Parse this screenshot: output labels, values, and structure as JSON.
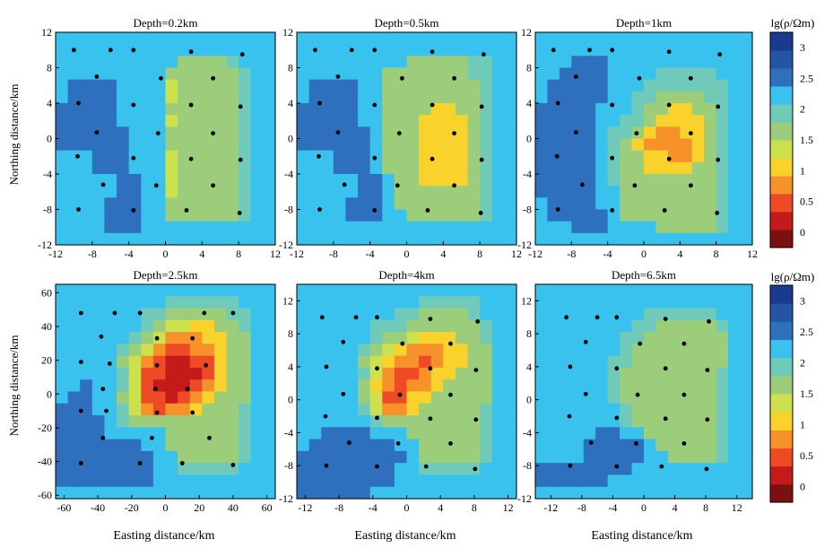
{
  "figure": {
    "x_axis_label": "Easting distance/km",
    "y_axis_label": "Northing distance/km"
  },
  "colorbar": {
    "title": "lg(ρ/Ωm)",
    "ticks": [
      "3",
      "2.5",
      "2",
      "1.5",
      "1",
      "0.5",
      "0"
    ],
    "colors": [
      "#7a1010",
      "#c41a1a",
      "#ee4a25",
      "#f7922a",
      "#f9d22c",
      "#cde04d",
      "#9ccd7a",
      "#6fcab9",
      "#39c2ee",
      "#2e6fbe",
      "#2455a4",
      "#1a3a8e"
    ]
  },
  "chart_data": [
    {
      "type": "heatmap",
      "title": "Depth=0.2km",
      "x_range": [
        -12,
        12
      ],
      "y_range": [
        -12,
        12
      ],
      "x_ticks": [
        "-12",
        "-8",
        "-4",
        "0",
        "4",
        "8",
        "12"
      ],
      "y_ticks": [
        "12",
        "8",
        "4",
        "0",
        "-4",
        "-8",
        "-12"
      ],
      "grid": [
        "888888888888888888",
        "888888888888888888",
        "888888888866667888",
        "888888888666666788",
        "899998888566666788",
        "899998888566666788",
        "999998888666666788",
        "999998888566666788",
        "999999888666666788",
        "999999888666666788",
        "888999888566666788",
        "888999888566666788",
        "888889988566666788",
        "888889988566666788",
        "888899988666666788",
        "888899988666666788",
        "888899988888888888",
        "888888888888888888"
      ],
      "stations": [
        [
          -10,
          10
        ],
        [
          -6,
          10
        ],
        [
          -3.5,
          10
        ],
        [
          2.8,
          9.8
        ],
        [
          8.4,
          9.5
        ],
        [
          -7.5,
          7
        ],
        [
          -0.5,
          6.8
        ],
        [
          5.2,
          6.8
        ],
        [
          -9.5,
          4
        ],
        [
          -3.5,
          3.8
        ],
        [
          2.8,
          3.8
        ],
        [
          8.2,
          3.6
        ],
        [
          -7.5,
          0.7
        ],
        [
          -0.8,
          0.6
        ],
        [
          5.2,
          0.6
        ],
        [
          -9.6,
          -2
        ],
        [
          -3.5,
          -2.2
        ],
        [
          2.8,
          -2.3
        ],
        [
          8.2,
          -2.4
        ],
        [
          -6.8,
          -5.2
        ],
        [
          -1,
          -5.3
        ],
        [
          5.2,
          -5.3
        ],
        [
          -9.5,
          -8
        ],
        [
          -3.5,
          -8.1
        ],
        [
          2.3,
          -8.1
        ],
        [
          8.1,
          -8.4
        ]
      ]
    },
    {
      "type": "heatmap",
      "title": "Depth=0.5km",
      "x_range": [
        -12,
        12
      ],
      "y_range": [
        -12,
        12
      ],
      "x_ticks": [
        "-12",
        "-8",
        "-4",
        "0",
        "4",
        "8",
        "12"
      ],
      "y_ticks": [
        "12",
        "8",
        "4",
        "0",
        "-4",
        "-8",
        "-12"
      ],
      "grid": [
        "888888888888888888",
        "888888888888888888",
        "888888888666667788",
        "888888866666667788",
        "899998866666666788",
        "899998866666666788",
        "999998866664466788",
        "999998866644446788",
        "999999866644446788",
        "999999866644446788",
        "888999866644446788",
        "888999866644446788",
        "888889986644446788",
        "888889986666666788",
        "888899986666666788",
        "888899988666666788",
        "888888888888888888",
        "888888888888888888"
      ],
      "stations": [
        [
          -10,
          10
        ],
        [
          -6,
          10
        ],
        [
          -3.5,
          10
        ],
        [
          2.8,
          9.8
        ],
        [
          8.4,
          9.5
        ],
        [
          -7.5,
          7
        ],
        [
          -0.5,
          6.8
        ],
        [
          5.2,
          6.8
        ],
        [
          -9.5,
          4
        ],
        [
          -3.5,
          3.8
        ],
        [
          2.8,
          3.8
        ],
        [
          8.2,
          3.6
        ],
        [
          -7.5,
          0.7
        ],
        [
          -0.8,
          0.6
        ],
        [
          5.2,
          0.6
        ],
        [
          -9.6,
          -2
        ],
        [
          -3.5,
          -2.2
        ],
        [
          2.8,
          -2.3
        ],
        [
          8.2,
          -2.4
        ],
        [
          -6.8,
          -5.2
        ],
        [
          -1,
          -5.3
        ],
        [
          5.2,
          -5.3
        ],
        [
          -9.5,
          -8
        ],
        [
          -3.5,
          -8.1
        ],
        [
          2.3,
          -8.1
        ],
        [
          8.1,
          -8.4
        ]
      ]
    },
    {
      "type": "heatmap",
      "title": "Depth=1km",
      "x_range": [
        -12,
        12
      ],
      "y_range": [
        -12,
        12
      ],
      "x_ticks": [
        "-12",
        "-8",
        "-4",
        "0",
        "4",
        "8",
        "12"
      ],
      "y_ticks": [
        "12",
        "8",
        "4",
        "0",
        "-4",
        "-8",
        "-12"
      ],
      "grid": [
        "888888888888888888",
        "888888888888888888",
        "888999888888888888",
        "889999888877777888",
        "899999888777777788",
        "899999887766667788",
        "999998887664466788",
        "999998877644446788",
        "999998776433446788",
        "999998764333346788",
        "999998766443346788",
        "999998766444466788",
        "999998766666666788",
        "999998866666666788",
        "899998866666666788",
        "899999866666666788",
        "888999888866666788",
        "888888888888888888"
      ],
      "stations": [
        [
          -10,
          10
        ],
        [
          -6,
          10
        ],
        [
          -3.5,
          10
        ],
        [
          2.8,
          9.8
        ],
        [
          8.4,
          9.5
        ],
        [
          -7.5,
          7
        ],
        [
          -0.5,
          6.8
        ],
        [
          5.2,
          6.8
        ],
        [
          -9.5,
          4
        ],
        [
          -3.5,
          3.8
        ],
        [
          2.8,
          3.8
        ],
        [
          8.2,
          3.6
        ],
        [
          -7.5,
          0.7
        ],
        [
          -0.8,
          0.6
        ],
        [
          5.2,
          0.6
        ],
        [
          -9.6,
          -2
        ],
        [
          -3.5,
          -2.2
        ],
        [
          2.8,
          -2.3
        ],
        [
          8.2,
          -2.4
        ],
        [
          -6.8,
          -5.2
        ],
        [
          -1,
          -5.3
        ],
        [
          5.2,
          -5.3
        ],
        [
          -9.5,
          -8
        ],
        [
          -3.5,
          -8.1
        ],
        [
          2.3,
          -8.1
        ],
        [
          8.1,
          -8.4
        ]
      ]
    },
    {
      "type": "heatmap",
      "title": "Depth=2.5km",
      "x_range": [
        -65,
        65
      ],
      "y_range": [
        -62,
        65
      ],
      "x_ticks": [
        "-60",
        "-40",
        "-20",
        "0",
        "20",
        "40",
        "60"
      ],
      "y_ticks": [
        "60",
        "40",
        "20",
        "0",
        "-20",
        "-40",
        "-60"
      ],
      "grid": [
        "888888888888888888",
        "888888888777777888",
        "888888877666667788",
        "888888876554466788",
        "888888765333446688",
        "888887653223346688",
        "888886532112246688",
        "888887522111246688",
        "889887521112346688",
        "899886522123466688",
        "999887532334666788",
        "999987666666666788",
        "999988888666666788",
        "999999988666666788",
        "999999998866666788",
        "999999998877777888",
        "999999998888888888",
        "888888888888888888"
      ],
      "stations": [
        [
          -50,
          48
        ],
        [
          -30,
          48
        ],
        [
          -15,
          48
        ],
        [
          23,
          48
        ],
        [
          40,
          48
        ],
        [
          -38,
          34
        ],
        [
          -5,
          33
        ],
        [
          16,
          33
        ],
        [
          -50,
          19
        ],
        [
          -33,
          18
        ],
        [
          -5,
          17
        ],
        [
          24,
          17
        ],
        [
          -37,
          3
        ],
        [
          -6,
          3
        ],
        [
          13,
          3
        ],
        [
          -50,
          -10
        ],
        [
          -35,
          -10
        ],
        [
          -5,
          -11
        ],
        [
          16,
          -11
        ],
        [
          -37,
          -26
        ],
        [
          -8,
          -26
        ],
        [
          26,
          -26
        ],
        [
          -50,
          -41
        ],
        [
          -15,
          -41
        ],
        [
          10,
          -41
        ],
        [
          40,
          -42
        ]
      ]
    },
    {
      "type": "heatmap",
      "title": "Depth=4km",
      "x_range": [
        -13,
        13
      ],
      "y_range": [
        -12,
        14
      ],
      "x_ticks": [
        "-12",
        "-8",
        "-4",
        "0",
        "4",
        "8",
        "12"
      ],
      "y_ticks": [
        "12",
        "8",
        "4",
        "0",
        "-4",
        "-8",
        "-12"
      ],
      "grid": [
        "888888888888888888",
        "888888888877777888",
        "888888887766667888",
        "888888777666666788",
        "888888766544466788",
        "888887654333446688",
        "888886543323446688",
        "888887532234466688",
        "888886432334666688",
        "888886522446666688",
        "888887533466666788",
        "888888766666666788",
        "889999888666666788",
        "899999998866666788",
        "999999999866666788",
        "999999998877777888",
        "999999998888888888",
        "999999888888888888"
      ],
      "stations": [
        [
          -10,
          10
        ],
        [
          -6,
          10
        ],
        [
          -3.5,
          10
        ],
        [
          2.8,
          9.8
        ],
        [
          8.4,
          9.5
        ],
        [
          -7.5,
          7
        ],
        [
          -0.5,
          6.8
        ],
        [
          5.2,
          6.8
        ],
        [
          -9.5,
          4
        ],
        [
          -3.5,
          3.8
        ],
        [
          2.8,
          3.8
        ],
        [
          8.2,
          3.6
        ],
        [
          -7.5,
          0.7
        ],
        [
          -0.8,
          0.6
        ],
        [
          5.2,
          0.6
        ],
        [
          -9.6,
          -2
        ],
        [
          -3.5,
          -2.2
        ],
        [
          2.8,
          -2.3
        ],
        [
          8.2,
          -2.4
        ],
        [
          -6.8,
          -5.2
        ],
        [
          -1,
          -5.3
        ],
        [
          5.2,
          -5.3
        ],
        [
          -9.5,
          -8
        ],
        [
          -3.5,
          -8.1
        ],
        [
          2.3,
          -8.1
        ],
        [
          8.1,
          -8.4
        ]
      ]
    },
    {
      "type": "heatmap",
      "title": "Depth=6.5km",
      "x_range": [
        -14,
        14
      ],
      "y_range": [
        -12,
        14
      ],
      "x_ticks": [
        "-12",
        "-8",
        "-4",
        "0",
        "4",
        "8",
        "12"
      ],
      "y_ticks": [
        "12",
        "8",
        "4",
        "0",
        "-4",
        "-8",
        "-12"
      ],
      "grid": [
        "888888888888888888",
        "888888888888888888",
        "888888888777777888",
        "888888887766666788",
        "888888877666666688",
        "888888876666666688",
        "888888776666666688",
        "888888766666666788",
        "888888766666666788",
        "888888766666666788",
        "888888876666666788",
        "888888876666666788",
        "888889988666666788",
        "888899999866666788",
        "888899999886666788",
        "999999998888888888",
        "999999888888888888",
        "888888888888888888"
      ],
      "stations": [
        [
          -10,
          10
        ],
        [
          -6,
          10
        ],
        [
          -3.5,
          10
        ],
        [
          2.8,
          9.8
        ],
        [
          8.4,
          9.5
        ],
        [
          -7.5,
          7
        ],
        [
          -0.5,
          6.8
        ],
        [
          5.2,
          6.8
        ],
        [
          -9.5,
          4
        ],
        [
          -3.5,
          3.8
        ],
        [
          2.8,
          3.8
        ],
        [
          8.2,
          3.6
        ],
        [
          -7.5,
          0.7
        ],
        [
          -0.8,
          0.6
        ],
        [
          5.2,
          0.6
        ],
        [
          -9.6,
          -2
        ],
        [
          -3.5,
          -2.2
        ],
        [
          2.8,
          -2.3
        ],
        [
          8.2,
          -2.4
        ],
        [
          -6.8,
          -5.2
        ],
        [
          -1,
          -5.3
        ],
        [
          5.2,
          -5.3
        ],
        [
          -9.5,
          -8
        ],
        [
          -3.5,
          -8.1
        ],
        [
          2.3,
          -8.1
        ],
        [
          8.1,
          -8.4
        ]
      ]
    }
  ]
}
